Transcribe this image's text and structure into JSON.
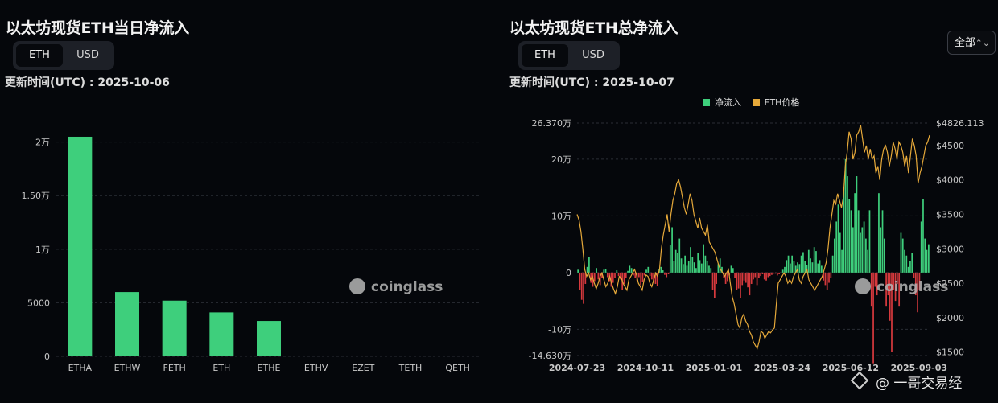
{
  "left": {
    "title": "以太坊现货ETH当日净流入",
    "toggle": [
      "ETH",
      "USD"
    ],
    "updated": "更新时间(UTC) : 2025-10-06",
    "watermark": "coinglass"
  },
  "right": {
    "title": "以太坊现货ETH总净流入",
    "toggle": [
      "ETH",
      "USD"
    ],
    "updated": "更新时间(UTC) : 2025-10-07",
    "range_select": "全部",
    "legend": [
      "净流入",
      "ETH价格"
    ],
    "watermark": "coinglass"
  },
  "source_tag": "@ 一哥交易经",
  "colors": {
    "background": "#05070b",
    "inflow": "#3ecf7c",
    "outflow": "#d6393d",
    "price": "#e6a93a",
    "grid": "#2a2e35"
  },
  "chart_data": [
    {
      "type": "bar",
      "title": "以太坊现货ETH当日净流入",
      "categories": [
        "ETHA",
        "ETHW",
        "FETH",
        "ETH",
        "ETHE",
        "ETHV",
        "EZET",
        "TETH",
        "QETH"
      ],
      "values": [
        20500,
        6000,
        5200,
        4100,
        3300,
        0,
        0,
        0,
        0
      ],
      "ylim": [
        0,
        22000
      ],
      "yticks": [
        0,
        5000,
        10000,
        15000,
        20000
      ],
      "ytick_labels": [
        "0",
        "5000",
        "1万",
        "1.50万",
        "2万"
      ],
      "grid": true
    },
    {
      "type": "bar+line",
      "title": "以太坊现货ETH总净流入",
      "x_labels": [
        "2024-07-23",
        "2024-10-11",
        "2025-01-01",
        "2025-03-24",
        "2025-06-12",
        "2025-09-03"
      ],
      "left_axis": {
        "ticks": [
          263700,
          200000,
          100000,
          0,
          -100000,
          -146300
        ],
        "labels": [
          "26.370万",
          "20万",
          "10万",
          "0",
          "-10万",
          "-14.630万"
        ],
        "range": [
          -146300,
          263700
        ]
      },
      "right_axis": {
        "ticks": [
          4826.113,
          4500,
          4000,
          3500,
          3000,
          2500,
          2000,
          1500
        ],
        "labels": [
          "$4826.113",
          "$4500",
          "$4000",
          "$3500",
          "$3000",
          "$2500",
          "$2000",
          "$1500"
        ],
        "range": [
          1450,
          4826.113
        ]
      },
      "series": [
        {
          "name": "净流入",
          "kind": "bar",
          "values": [
            5,
            -30,
            -48,
            -55,
            -20,
            10,
            28,
            -18,
            -25,
            -15,
            8,
            -12,
            -22,
            -10,
            5,
            6,
            -8,
            -15,
            -25,
            -18,
            -10,
            4,
            -6,
            -12,
            -30,
            -20,
            -10,
            3,
            12,
            8,
            -5,
            -10,
            -14,
            -8,
            -22,
            -16,
            -5,
            5,
            10,
            -6,
            -12,
            -18,
            -20,
            -24,
            6,
            10,
            4,
            -4,
            -8,
            -3,
            48,
            80,
            20,
            40,
            35,
            60,
            25,
            15,
            30,
            12,
            20,
            45,
            28,
            18,
            8,
            35,
            22,
            16,
            50,
            30,
            20,
            12,
            8,
            -30,
            -45,
            -20,
            15,
            25,
            10,
            -10,
            -20,
            -15,
            -5,
            12,
            8,
            -10,
            -30,
            -28,
            -45,
            -22,
            -14,
            -18,
            -26,
            -40,
            -20,
            -12,
            -8,
            -22,
            -10,
            -6,
            -3,
            -12,
            -14,
            -8,
            -6,
            -4,
            -2,
            -2,
            -5,
            -3,
            -1,
            5,
            10,
            22,
            30,
            16,
            30,
            20,
            12,
            18,
            15,
            30,
            36,
            20,
            14,
            40,
            25,
            18,
            45,
            38,
            16,
            22,
            12,
            -14,
            -22,
            -30,
            -18,
            -10,
            30,
            60,
            90,
            120,
            70,
            40,
            150,
            200,
            170,
            130,
            110,
            80,
            140,
            170,
            110,
            70,
            80,
            90,
            60,
            40,
            110,
            -60,
            -160,
            -25,
            -40,
            140,
            80,
            110,
            60,
            -60,
            -40,
            -85,
            -140,
            -30,
            -50,
            -20,
            -60,
            70,
            60,
            40,
            30,
            10,
            20,
            35,
            -10,
            -40,
            -70,
            -30,
            90,
            130,
            60,
            40,
            50
          ]
        },
        {
          "name": "ETH价格",
          "kind": "line",
          "values": [
            3500,
            3420,
            3250,
            3000,
            2700,
            2600,
            2650,
            2550,
            2600,
            2500,
            2420,
            2500,
            2600,
            2650,
            2550,
            2450,
            2500,
            2600,
            2500,
            2420,
            2350,
            2450,
            2600,
            2580,
            2500,
            2450,
            2400,
            2550,
            2600,
            2650,
            2700,
            2620,
            2500,
            2450,
            2400,
            2550,
            2620,
            2600,
            2500,
            2450,
            2550,
            2650,
            2600,
            2700,
            3000,
            3200,
            3350,
            3500,
            3250,
            3500,
            3700,
            3800,
            3950,
            4000,
            3900,
            3750,
            3600,
            3500,
            3650,
            3800,
            3700,
            3500,
            3400,
            3300,
            3450,
            3300,
            3250,
            3200,
            3350,
            3100,
            3050,
            3000,
            2950,
            2850,
            2750,
            2700,
            2650,
            2600,
            2650,
            2700,
            2500,
            2300,
            2200,
            2050,
            1900,
            1850,
            2000,
            2050,
            1950,
            1900,
            1800,
            1750,
            1650,
            1600,
            1550,
            1650,
            1800,
            1780,
            1700,
            1750,
            1800,
            1780,
            1820,
            1850,
            2200,
            2500,
            2550,
            2600,
            2650,
            2600,
            2500,
            2550,
            2500,
            2600,
            2650,
            2700,
            2550,
            2500,
            2600,
            2650,
            2700,
            2550,
            2500,
            2450,
            2400,
            2450,
            2500,
            2550,
            2600,
            2700,
            2800,
            3000,
            3300,
            3500,
            3700,
            3650,
            3800,
            3700,
            3600,
            3750,
            4200,
            4400,
            4700,
            4600,
            4300,
            4400,
            4650,
            4700,
            4800,
            4600,
            4400,
            4500,
            4300,
            4450,
            4300,
            4350,
            4100,
            4200,
            4000,
            4300,
            4450,
            4500,
            4400,
            4200,
            4350,
            4550,
            4450,
            4300,
            4550,
            4500,
            4400,
            4200,
            4350,
            4100,
            4350,
            4600,
            4500,
            4350,
            3950,
            4100,
            4200,
            4350,
            4500,
            4550,
            4650
          ]
        }
      ],
      "grid": true,
      "legend_position": "top"
    }
  ]
}
